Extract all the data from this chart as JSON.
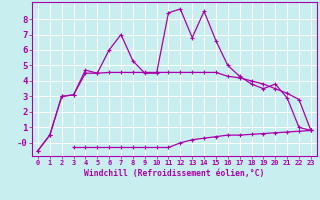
{
  "xlabel": "Windchill (Refroidissement éolien,°C)",
  "bg_color": "#c8eef0",
  "grid_color": "#ffffff",
  "line_color": "#aa00aa",
  "xlim": [
    -0.5,
    23.5
  ],
  "ylim": [
    -0.85,
    9.1
  ],
  "xticks": [
    0,
    1,
    2,
    3,
    4,
    5,
    6,
    7,
    8,
    9,
    10,
    11,
    12,
    13,
    14,
    15,
    16,
    17,
    18,
    19,
    20,
    21,
    22,
    23
  ],
  "yticks": [
    0,
    1,
    2,
    3,
    4,
    5,
    6,
    7,
    8
  ],
  "ytick_labels": [
    "-0",
    "1",
    "2",
    "3",
    "4",
    "5",
    "6",
    "7",
    "8"
  ],
  "line1_x": [
    0,
    1,
    2,
    3,
    4,
    5,
    6,
    7,
    8,
    9,
    10,
    11,
    12,
    13,
    14,
    15,
    16,
    17,
    18,
    19,
    20,
    21,
    22,
    23
  ],
  "line1_y": [
    -0.5,
    0.5,
    3.0,
    3.1,
    4.7,
    4.5,
    6.0,
    7.0,
    5.3,
    4.5,
    4.5,
    8.4,
    8.65,
    6.8,
    8.5,
    6.6,
    5.0,
    4.3,
    3.8,
    3.5,
    3.8,
    2.9,
    1.0,
    0.8
  ],
  "line2_x": [
    0,
    1,
    2,
    3,
    4,
    5,
    6,
    7,
    8,
    9,
    10,
    11,
    12,
    13,
    14,
    15,
    16,
    17,
    18,
    19,
    20,
    21,
    22,
    23
  ],
  "line2_y": [
    -0.5,
    0.5,
    3.0,
    3.1,
    4.5,
    4.5,
    4.55,
    4.55,
    4.55,
    4.55,
    4.55,
    4.55,
    4.55,
    4.55,
    4.55,
    4.55,
    4.3,
    4.2,
    4.0,
    3.8,
    3.5,
    3.2,
    2.8,
    0.8
  ],
  "line3_x": [
    3,
    4,
    5,
    6,
    7,
    8,
    9,
    10,
    11,
    12,
    13,
    14,
    15,
    16,
    17,
    18,
    19,
    20,
    21,
    22,
    23
  ],
  "line3_y": [
    -0.3,
    -0.3,
    -0.3,
    -0.3,
    -0.3,
    -0.3,
    -0.3,
    -0.3,
    -0.3,
    0.0,
    0.2,
    0.3,
    0.4,
    0.5,
    0.5,
    0.55,
    0.6,
    0.65,
    0.7,
    0.75,
    0.8
  ]
}
